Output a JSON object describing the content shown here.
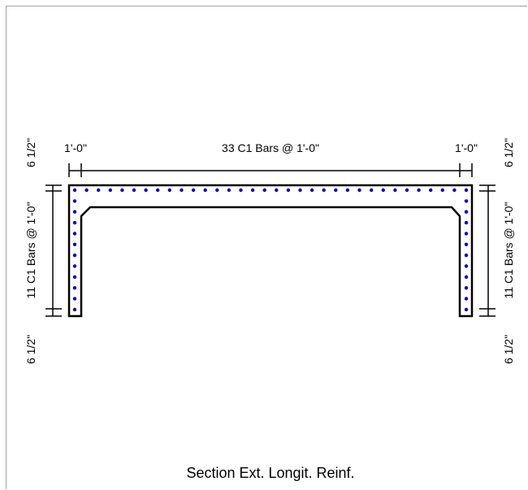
{
  "caption": "Section Ext. Longit. Reinf.",
  "dimensions": {
    "top_left_end": "1'-0\"",
    "top_middle": "33 C1 Bars @ 1'-0\"",
    "top_right_end": "1'-0\"",
    "left_top_cover": "6 1/2\"",
    "left_middle": "11 C1 Bars @ 1'-0\"",
    "left_bottom_cover": "6 1/2\"",
    "right_top_cover": "6 1/2\"",
    "right_middle": "11 C1 Bars @ 1'-0\"",
    "right_bottom_cover": "6 1/2\""
  },
  "bars": {
    "top_row_spaces": 33,
    "wall_spaces": 11,
    "color": "#0000cc"
  },
  "colors": {
    "outline": "#000000",
    "frame": "#a0a0a0"
  }
}
